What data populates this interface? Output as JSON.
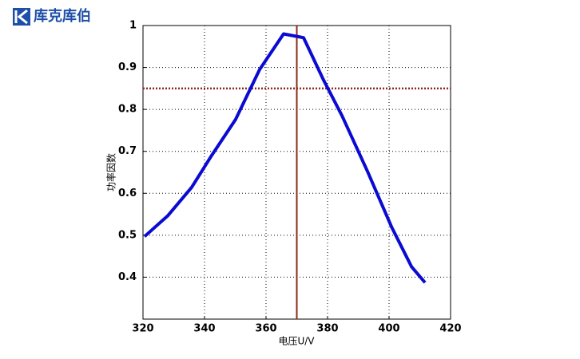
{
  "logo": {
    "text": "库克库伯"
  },
  "chart_data": {
    "type": "line",
    "xlabel": "电压U/V",
    "ylabel": "功率因数",
    "x": [
      320.5,
      328,
      335.8,
      342.3,
      350.1,
      357.9,
      365.7,
      372.2,
      378.7,
      384.7,
      393,
      400.8,
      407.3,
      411.7
    ],
    "series": [
      {
        "color": "#0a0ad2",
        "values": [
          0.497,
          0.546,
          0.614,
          0.69,
          0.776,
          0.895,
          0.98,
          0.971,
          0.87,
          0.785,
          0.652,
          0.52,
          0.425,
          0.387
        ]
      }
    ],
    "xlim": [
      320,
      420
    ],
    "xticks": [
      320,
      340,
      360,
      380,
      400,
      420
    ],
    "ylim": [
      0.3,
      1
    ],
    "yticks": [
      0.4,
      0.5,
      0.6,
      0.7,
      0.8,
      0.9,
      1
    ],
    "grid": true,
    "vline": {
      "value": 370,
      "color": "#8b2a1a"
    },
    "hline": {
      "value": 0.85,
      "color": "#8b2a1a"
    }
  }
}
